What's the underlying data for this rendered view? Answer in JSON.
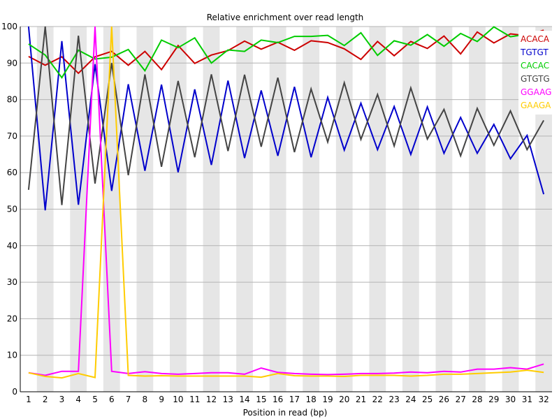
{
  "chart_data": {
    "type": "line",
    "title": "Relative enrichment over read length",
    "xlabel": "Position in read (bp)",
    "ylabel": "",
    "ylim": [
      0,
      100
    ],
    "yticks": [
      "0",
      "10",
      "20",
      "30",
      "40",
      "50",
      "60",
      "70",
      "80",
      "90",
      "100"
    ],
    "categories": [
      "1",
      "2",
      "3",
      "4",
      "5",
      "6",
      "7",
      "8",
      "9",
      "10",
      "11",
      "12",
      "13",
      "14",
      "15",
      "16",
      "17",
      "18",
      "19",
      "20",
      "21",
      "22",
      "23",
      "24",
      "25",
      "26",
      "27",
      "28",
      "29",
      "30",
      "31",
      "32"
    ],
    "grid": true,
    "legend_position": "top-right",
    "series": [
      {
        "name": "ACACA",
        "color": "#cc0000",
        "values": [
          91.8,
          89.4,
          91.7,
          87.2,
          91.7,
          93.2,
          89.4,
          93.2,
          88.2,
          94.8,
          89.9,
          92.2,
          93.4,
          96.0,
          93.8,
          95.7,
          93.5,
          96.1,
          95.6,
          93.9,
          91.0,
          95.9,
          92.0,
          95.9,
          94.0,
          97.4,
          92.5,
          98.5,
          95.5,
          98.0,
          97.5,
          99.0
        ]
      },
      {
        "name": "TGTGT",
        "color": "#0000cc",
        "values": [
          100.0,
          49.7,
          96.0,
          51.2,
          89.7,
          55.0,
          84.2,
          60.5,
          84.1,
          60.1,
          82.8,
          62.1,
          85.2,
          64.0,
          82.5,
          64.6,
          83.5,
          64.2,
          80.6,
          66.2,
          79.0,
          66.3,
          78.1,
          65.0,
          78.0,
          65.3,
          75.1,
          65.3,
          73.2,
          63.8,
          70.2,
          54.1
        ]
      },
      {
        "name": "CACAC",
        "color": "#00cc00",
        "values": [
          95.2,
          92.2,
          86.0,
          93.5,
          91.1,
          91.6,
          93.7,
          87.9,
          96.3,
          94.2,
          96.9,
          90.0,
          93.6,
          93.2,
          96.3,
          95.6,
          97.3,
          97.3,
          97.6,
          94.8,
          98.3,
          92.1,
          96.1,
          94.9,
          97.8,
          94.6,
          98.1,
          95.9,
          99.9,
          97.2,
          97.9,
          93.0
        ]
      },
      {
        "name": "GTGTG",
        "color": "#444444",
        "values": [
          55.3,
          100.0,
          51.1,
          97.5,
          57.0,
          90.0,
          59.3,
          86.9,
          61.6,
          85.1,
          64.2,
          86.9,
          65.9,
          86.8,
          67.1,
          86.0,
          65.6,
          82.9,
          68.4,
          84.6,
          69.1,
          81.4,
          67.3,
          83.2,
          69.2,
          77.3,
          64.6,
          77.6,
          67.5,
          76.9,
          66.3,
          74.3
        ]
      },
      {
        "name": "GGAAG",
        "color": "#ff00ff",
        "values": [
          5.2,
          4.5,
          5.6,
          5.6,
          100.0,
          5.6,
          5.0,
          5.5,
          5.0,
          4.8,
          5.0,
          5.2,
          5.2,
          4.8,
          6.5,
          5.3,
          5.0,
          4.8,
          4.7,
          4.8,
          5.0,
          5.0,
          5.1,
          5.4,
          5.2,
          5.6,
          5.4,
          6.2,
          6.2,
          6.6,
          6.2,
          7.6
        ]
      },
      {
        "name": "GAAGA",
        "color": "#ffcc00",
        "values": [
          5.2,
          4.2,
          3.8,
          5.0,
          3.9,
          100.0,
          4.5,
          4.3,
          4.4,
          4.3,
          4.3,
          4.3,
          4.3,
          4.3,
          4.0,
          5.0,
          4.4,
          4.3,
          4.3,
          4.2,
          4.5,
          4.5,
          4.5,
          4.3,
          4.5,
          4.8,
          4.8,
          5.0,
          5.2,
          5.4,
          5.9,
          5.3
        ]
      }
    ]
  }
}
